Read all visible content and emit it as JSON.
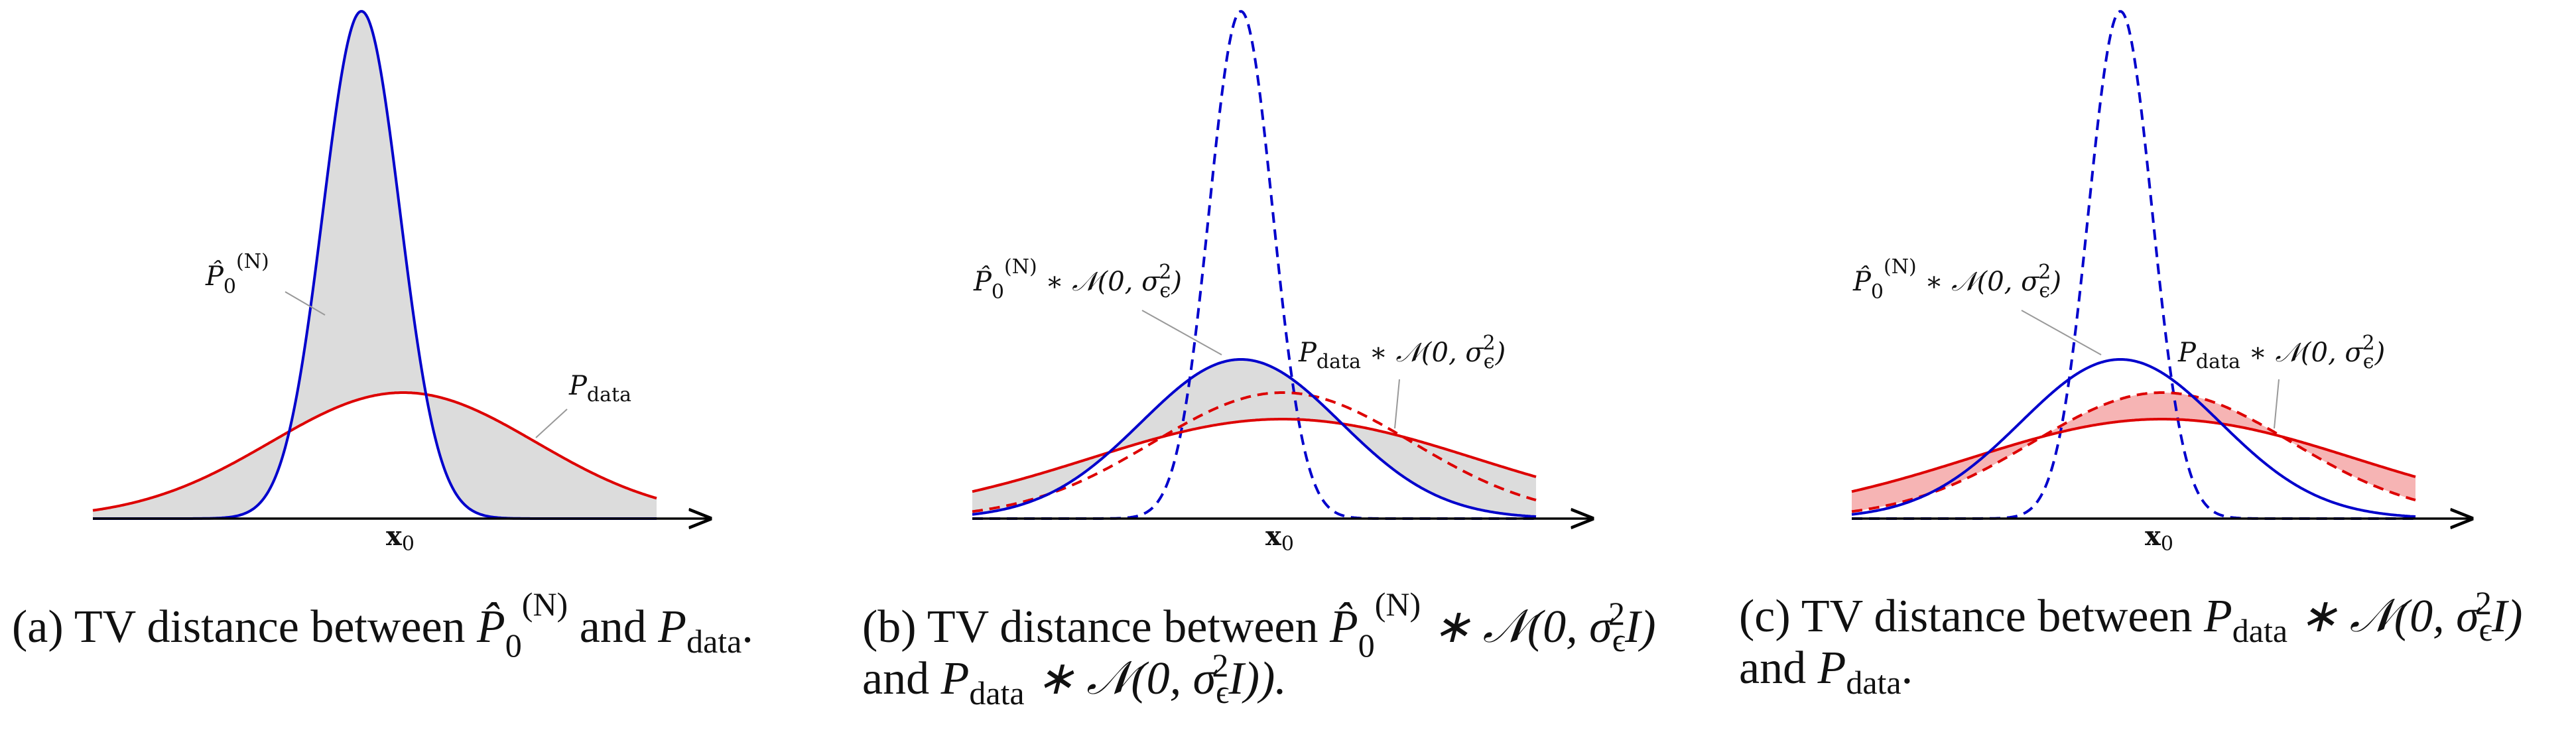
{
  "panels": [
    {
      "id": "a",
      "labels": {
        "p0hat": {
          "main": "P̂",
          "sub": "0",
          "sup": "(N)"
        },
        "pdata": {
          "main": "P",
          "sub": "data"
        }
      },
      "axis_label": {
        "main": "x",
        "sub": "0"
      },
      "caption": {
        "line1": [
          "(a) TV distance between ",
          "P̂",
          "0",
          "(N)",
          " and ",
          "P",
          "data",
          "."
        ]
      }
    },
    {
      "id": "b",
      "labels": {
        "p0hat_conv": {
          "main": "P̂",
          "sub": "0",
          "sup": "(N)",
          "rest": " ∗ 𝒩(0, σ",
          "sub2": "ϵ",
          "sup2": "2",
          "end": ")"
        },
        "pdata_conv": {
          "main": "P",
          "sub": "data",
          "rest": " ∗ 𝒩(0, σ",
          "sub2": "ϵ",
          "sup2": "2",
          "end": ")"
        }
      },
      "axis_label": {
        "main": "x",
        "sub": "0"
      },
      "caption": {
        "line1": [
          "(b) TV distance between ",
          "P̂",
          "0",
          "(N)",
          " ∗ 𝒩(0, σ",
          "ϵ",
          "2",
          "I)"
        ],
        "line2": [
          "and ",
          "P",
          "data",
          " ∗ 𝒩(0, σ",
          "ϵ",
          "2",
          "I))."
        ]
      }
    },
    {
      "id": "c",
      "labels": {
        "p0hat_conv": {
          "main": "P̂",
          "sub": "0",
          "sup": "(N)",
          "rest": " ∗ 𝒩(0, σ",
          "sub2": "ϵ",
          "sup2": "2",
          "end": ")"
        },
        "pdata_conv": {
          "main": "P",
          "sub": "data",
          "rest": " ∗ 𝒩(0, σ",
          "sub2": "ϵ",
          "sup2": "2",
          "end": ")"
        }
      },
      "axis_label": {
        "main": "x",
        "sub": "0"
      },
      "caption": {
        "line1": [
          "(c) TV distance between ",
          "P",
          "data",
          " ∗ 𝒩(0, σ",
          "ϵ",
          "2",
          "I)"
        ],
        "line2": [
          "and ",
          "P",
          "data",
          "."
        ]
      }
    }
  ],
  "colors": {
    "blue": "#0000cc",
    "red": "#dd0000",
    "gray_fill": "#dcdcdc",
    "red_fill": "#f6b4b4",
    "axis": "#000000",
    "leader": "#999999"
  }
}
